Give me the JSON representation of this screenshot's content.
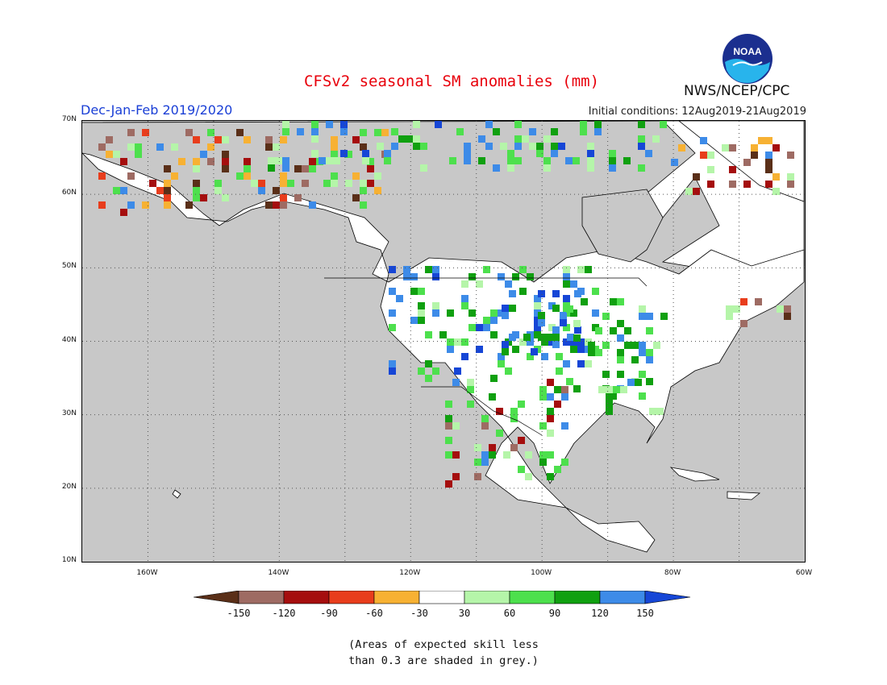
{
  "header": {
    "title": "CFSv2 seasonal SM anomalies (mm)",
    "agency": "NWS/NCEP/CPC",
    "period": "Dec-Jan-Feb 2019/2020",
    "initial_conditions": "Initial conditions: 12Aug2019-21Aug2019",
    "logo_text": "NOAA"
  },
  "map": {
    "lat_range": [
      10,
      70
    ],
    "lon_range": [
      -170,
      -60
    ],
    "lat_ticks": [
      "70N",
      "60N",
      "50N",
      "40N",
      "30N",
      "20N",
      "10N"
    ],
    "lon_ticks": [
      "160W",
      "140W",
      "120W",
      "100W",
      "80W",
      "60W"
    ],
    "no_skill_color": "#c8c8c8"
  },
  "legend": {
    "labels": [
      "-150",
      "-120",
      "-90",
      "-60",
      "-30",
      "30",
      "60",
      "90",
      "120",
      "150"
    ],
    "colors": [
      "#5a2f18",
      "#9e6b63",
      "#a50e0e",
      "#e83d1c",
      "#f7b133",
      "#ffffff",
      "#b5f5a9",
      "#4de04d",
      "#10a010",
      "#3d8be8",
      "#1646d6"
    ]
  },
  "note": {
    "line1": "(Areas of expected skill less",
    "line2": "than 0.3 are shaded in grey.)"
  }
}
